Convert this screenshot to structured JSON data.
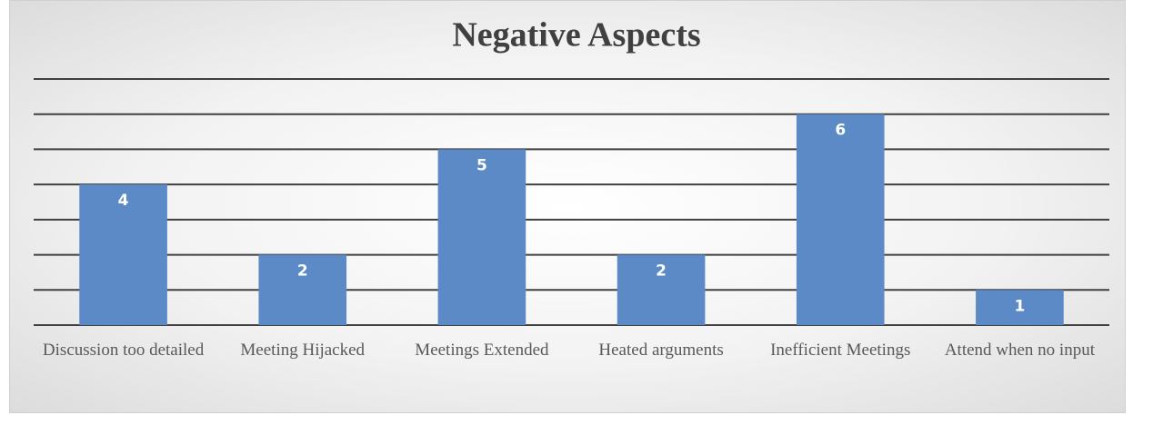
{
  "chart_data": {
    "type": "bar",
    "title": "Negative Aspects",
    "categories": [
      "Discussion too detailed",
      "Meeting Hijacked",
      "Meetings Extended",
      "Heated arguments",
      "Inefficient Meetings",
      "Attend when no input"
    ],
    "values": [
      4,
      2,
      5,
      2,
      6,
      1
    ],
    "color": "#5b8ac6",
    "ylim": [
      0,
      7
    ],
    "yticks": [
      0,
      1,
      2,
      3,
      4,
      5,
      6,
      7
    ],
    "grid": true
  }
}
